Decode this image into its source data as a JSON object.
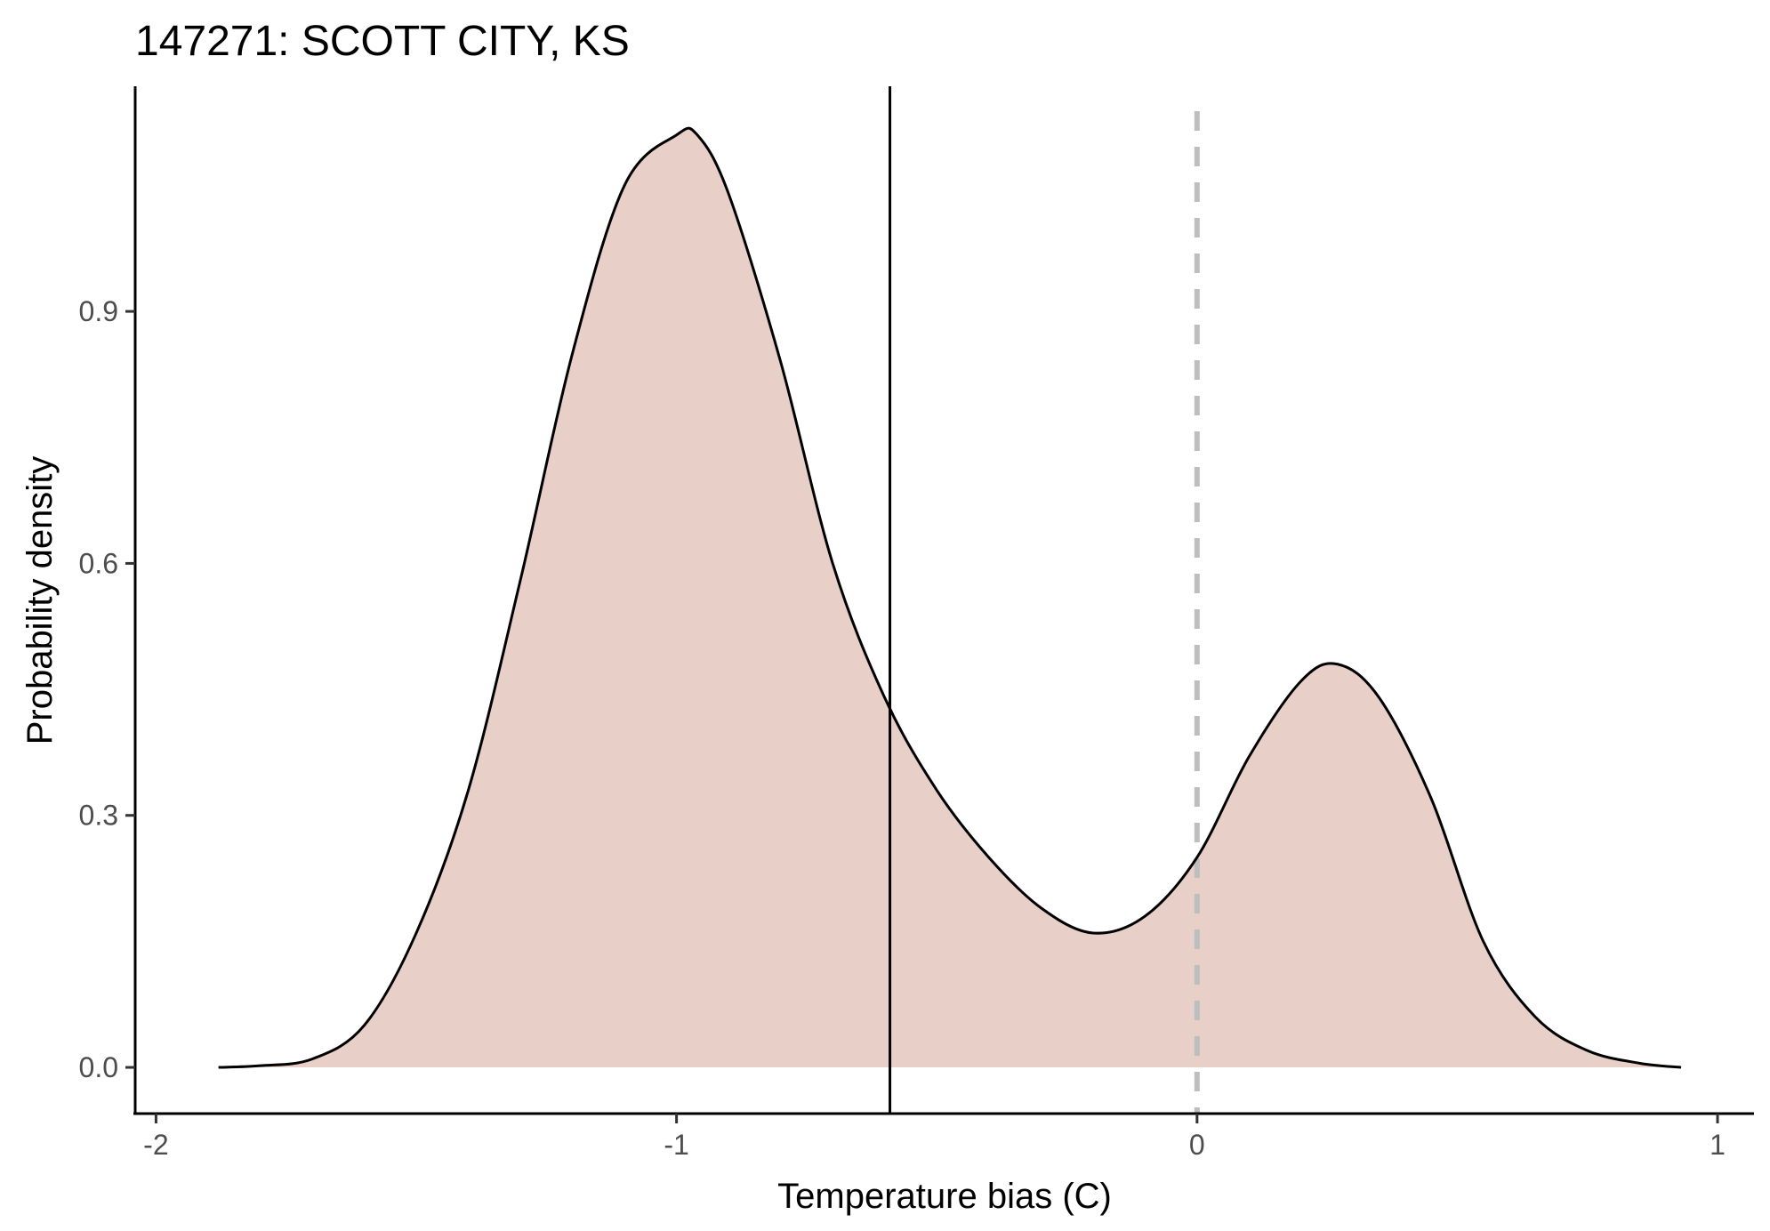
{
  "chart_data": {
    "type": "area",
    "title": "147271: SCOTT CITY, KS",
    "xlabel": "Temperature bias (C)",
    "ylabel": "Probability density",
    "xlim": [
      -2.04,
      1.07
    ],
    "ylim": [
      -0.055,
      1.168
    ],
    "x_ticks": [
      -2,
      -1,
      0,
      1
    ],
    "x_tick_labels": [
      "-2",
      "-1",
      "0",
      "1"
    ],
    "y_ticks": [
      0.0,
      0.3,
      0.6,
      0.9
    ],
    "y_tick_labels": [
      "0.0",
      "0.3",
      "0.6",
      "0.9"
    ],
    "grid": false,
    "legend": "none",
    "fill_color": "#e8cfc8",
    "line_color": "#000000",
    "vlines": [
      {
        "x": -0.59,
        "style": "solid",
        "color": "#000000"
      },
      {
        "x": 0.0,
        "style": "dashed",
        "color": "#bebebe"
      }
    ],
    "series": [
      {
        "x": [
          -1.88,
          -1.8,
          -1.7,
          -1.6,
          -1.5,
          -1.4,
          -1.3,
          -1.2,
          -1.1,
          -1.0,
          -0.96,
          -0.9,
          -0.8,
          -0.7,
          -0.6,
          -0.5,
          -0.4,
          -0.3,
          -0.2,
          -0.1,
          0.0,
          0.1,
          0.2,
          0.27,
          0.35,
          0.45,
          0.55,
          0.65,
          0.75,
          0.85,
          0.93
        ],
        "y": [
          0.0,
          0.002,
          0.01,
          0.05,
          0.16,
          0.33,
          0.58,
          0.85,
          1.05,
          1.11,
          1.11,
          1.04,
          0.84,
          0.6,
          0.44,
          0.33,
          0.25,
          0.19,
          0.16,
          0.18,
          0.25,
          0.37,
          0.46,
          0.48,
          0.44,
          0.32,
          0.15,
          0.06,
          0.02,
          0.005,
          0.0
        ]
      }
    ]
  }
}
